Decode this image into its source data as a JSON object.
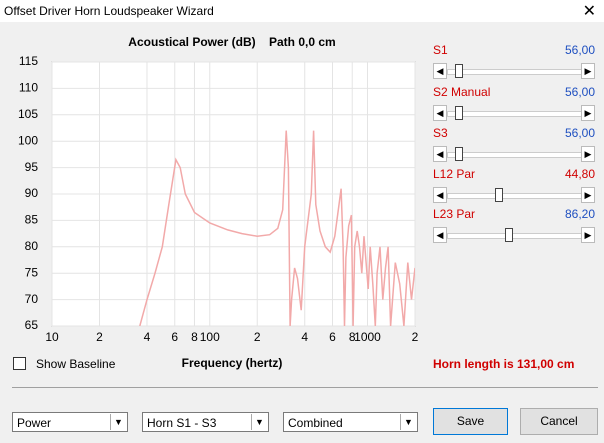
{
  "window": {
    "title": "Offset Driver Horn Loudspeaker Wizard"
  },
  "chart_data": {
    "type": "line",
    "title": "Acoustical Power (dB)    Path 0,0 cm",
    "x_label": "Frequency (hertz)",
    "x_log": true,
    "xlim": [
      10,
      2000
    ],
    "ylim": [
      65,
      115
    ],
    "xticks": [
      10,
      {
        "value": 20,
        "label": "2"
      },
      {
        "value": 40,
        "label": "4"
      },
      {
        "value": 60,
        "label": "6"
      },
      {
        "value": 80,
        "label": "8"
      },
      100,
      {
        "value": 200,
        "label": "2"
      },
      {
        "value": 400,
        "label": "4"
      },
      {
        "value": 600,
        "label": "6"
      },
      {
        "value": 800,
        "label": "8"
      },
      1000,
      {
        "value": 2000,
        "label": "2"
      }
    ],
    "yticks": [
      65,
      70,
      75,
      80,
      85,
      90,
      95,
      100,
      105,
      110,
      115
    ],
    "grid": true,
    "series": [
      {
        "color": "#f2a9a9",
        "x": [
          36,
          40,
          45,
          50,
          55,
          61,
          65,
          70,
          80,
          100,
          130,
          160,
          200,
          240,
          270,
          290,
          305,
          315,
          323,
          330,
          345,
          360,
          380,
          400,
          440,
          455,
          470,
          500,
          540,
          580,
          620,
          660,
          680,
          700,
          715,
          730,
          760,
          790,
          810,
          830,
          860,
          890,
          920,
          950,
          980,
          1010,
          1040,
          1080,
          1120,
          1150,
          1200,
          1250,
          1300,
          1350,
          1400,
          1500,
          1600,
          1700,
          1800,
          1900,
          2000
        ],
        "values": [
          65,
          70,
          75,
          80,
          88,
          96.5,
          95,
          90,
          86.5,
          84.5,
          83.2,
          82.5,
          82,
          82.3,
          83.5,
          87,
          102,
          95,
          65,
          70,
          76,
          74,
          68,
          80,
          90,
          102,
          88,
          83,
          80,
          79,
          82,
          88,
          91,
          80,
          65,
          78,
          84,
          86,
          65,
          80,
          83,
          80,
          75,
          82,
          77,
          72,
          80,
          73,
          65,
          75,
          80,
          70,
          76,
          80,
          65,
          77,
          73,
          65,
          77,
          70,
          76
        ]
      }
    ]
  },
  "sliders": [
    {
      "label": "S1",
      "value": "56,00"
    },
    {
      "label": "S2  Manual",
      "value": "56,00"
    },
    {
      "label": "S3",
      "value": "56,00"
    },
    {
      "label": "L12  Par",
      "value": "44,80"
    },
    {
      "label": "L23  Par",
      "value": "86,20"
    }
  ],
  "show_baseline": "Show Baseline",
  "horn_length": "Horn length is 131,00 cm",
  "dropdowns": [
    "Power",
    "Horn S1 - S3",
    "Combined"
  ],
  "buttons": [
    "Save",
    "Cancel"
  ]
}
